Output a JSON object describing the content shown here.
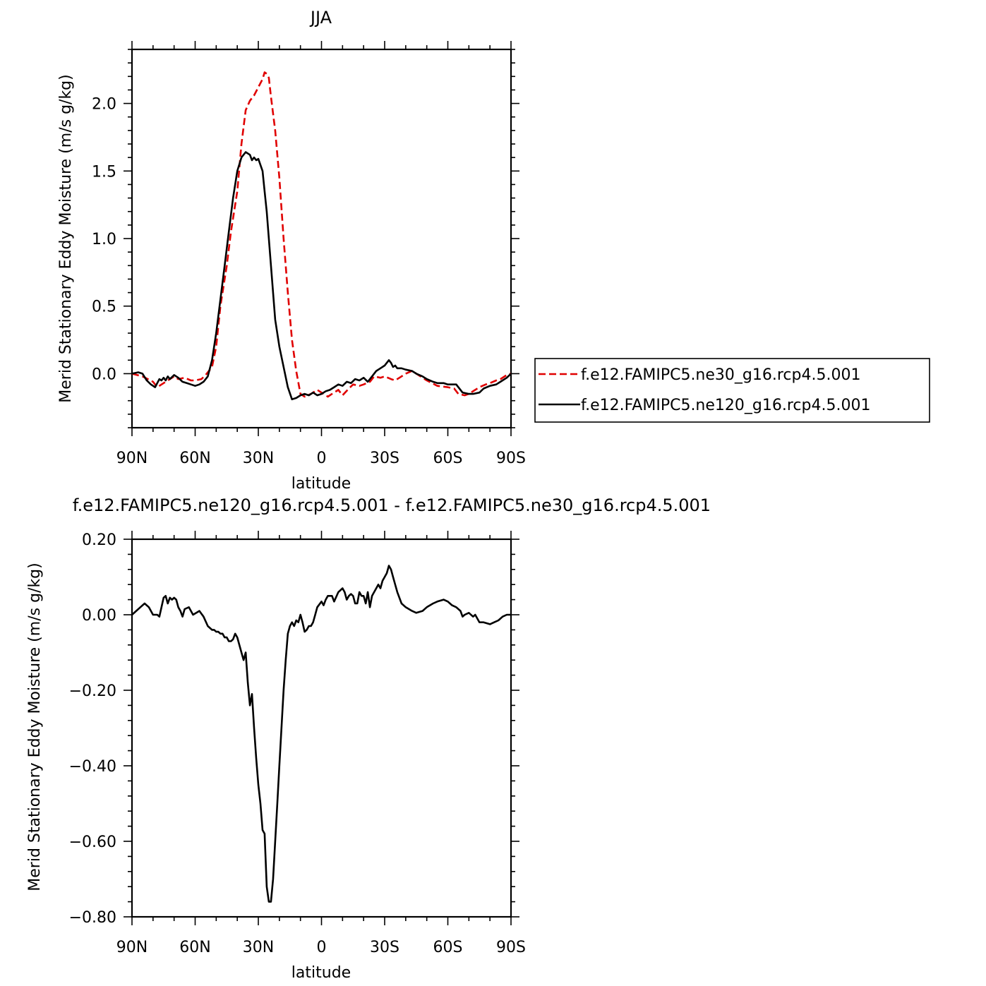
{
  "chart_data": [
    {
      "type": "line",
      "title": "JJA",
      "xlabel": "latitude",
      "ylabel": "Merid Stationary Eddy Moisture (m/s g/kg)",
      "xlim": [
        90,
        -90
      ],
      "ylim": [
        -0.4,
        2.4
      ],
      "x_ticks": [
        90,
        60,
        30,
        0,
        -30,
        -60,
        -90
      ],
      "x_tick_labels": [
        "90N",
        "60N",
        "30N",
        "0",
        "30S",
        "60S",
        "90S"
      ],
      "y_ticks": [
        0.0,
        0.5,
        1.0,
        1.5,
        2.0
      ],
      "y_tick_labels": [
        "0.0",
        "0.5",
        "1.0",
        "1.5",
        "2.0"
      ],
      "legend": "right",
      "series": [
        {
          "name": "f.e12.FAMIPC5.ne30_g16.rcp4.5.001",
          "color": "#e00000",
          "style": "dashed",
          "x": [
            90,
            85,
            80,
            78,
            75,
            72,
            70,
            68,
            65,
            62,
            60,
            57,
            55,
            52,
            50,
            48,
            45,
            43,
            40,
            38,
            36,
            34,
            32,
            30,
            28,
            27,
            26,
            25,
            24,
            22,
            20,
            18,
            16,
            14,
            12,
            10,
            8,
            5,
            2,
            0,
            -3,
            -5,
            -8,
            -10,
            -13,
            -15,
            -18,
            -20,
            -23,
            -25,
            -28,
            -30,
            -33,
            -35,
            -38,
            -40,
            -43,
            -45,
            -48,
            -50,
            -55,
            -60,
            -63,
            -65,
            -68,
            -70,
            -73,
            -75,
            -78,
            -80,
            -83,
            -85,
            -88,
            -90
          ],
          "y": [
            0.0,
            -0.02,
            -0.06,
            -0.1,
            -0.07,
            -0.04,
            -0.02,
            -0.04,
            -0.03,
            -0.05,
            -0.05,
            -0.04,
            -0.01,
            0.05,
            0.2,
            0.5,
            0.8,
            1.05,
            1.35,
            1.7,
            1.95,
            2.02,
            2.06,
            2.12,
            2.18,
            2.23,
            2.22,
            2.19,
            2.05,
            1.8,
            1.45,
            1.0,
            0.6,
            0.25,
            0.02,
            -0.15,
            -0.17,
            -0.15,
            -0.12,
            -0.14,
            -0.17,
            -0.15,
            -0.12,
            -0.16,
            -0.11,
            -0.08,
            -0.09,
            -0.08,
            -0.06,
            -0.02,
            -0.03,
            -0.02,
            -0.04,
            -0.05,
            -0.02,
            0.0,
            0.02,
            0.0,
            -0.03,
            -0.05,
            -0.09,
            -0.1,
            -0.11,
            -0.15,
            -0.16,
            -0.15,
            -0.12,
            -0.1,
            -0.08,
            -0.07,
            -0.05,
            -0.04,
            -0.01,
            0.0
          ]
        },
        {
          "name": "f.e12.FAMIPC5.ne120_g16.rcp4.5.001",
          "color": "#000000",
          "style": "solid",
          "x": [
            90,
            87,
            85,
            83,
            81,
            79,
            78,
            77,
            76,
            75,
            74,
            73,
            72,
            70,
            68,
            66,
            64,
            62,
            60,
            58,
            56,
            54,
            52,
            50,
            48,
            46,
            44,
            42,
            40,
            38,
            36,
            34,
            33,
            32,
            31,
            30,
            28,
            27,
            26,
            25,
            24,
            23,
            22,
            20,
            18,
            16,
            14,
            12,
            10,
            8,
            6,
            4,
            2,
            0,
            -2,
            -4,
            -6,
            -8,
            -10,
            -12,
            -14,
            -16,
            -18,
            -20,
            -22,
            -24,
            -26,
            -28,
            -30,
            -31,
            -32,
            -33,
            -34,
            -35,
            -36,
            -38,
            -40,
            -43,
            -45,
            -48,
            -50,
            -53,
            -55,
            -58,
            -60,
            -62,
            -64,
            -65,
            -67,
            -70,
            -72,
            -75,
            -77,
            -80,
            -83,
            -85,
            -88,
            -90
          ],
          "y": [
            0.0,
            0.01,
            0.0,
            -0.05,
            -0.08,
            -0.1,
            -0.07,
            -0.04,
            -0.05,
            -0.03,
            -0.05,
            -0.02,
            -0.04,
            -0.01,
            -0.03,
            -0.06,
            -0.07,
            -0.08,
            -0.09,
            -0.08,
            -0.06,
            -0.02,
            0.1,
            0.3,
            0.55,
            0.8,
            1.05,
            1.3,
            1.5,
            1.6,
            1.64,
            1.62,
            1.58,
            1.6,
            1.58,
            1.59,
            1.5,
            1.35,
            1.2,
            1.0,
            0.8,
            0.6,
            0.4,
            0.2,
            0.05,
            -0.1,
            -0.19,
            -0.18,
            -0.16,
            -0.15,
            -0.16,
            -0.14,
            -0.16,
            -0.15,
            -0.13,
            -0.12,
            -0.1,
            -0.08,
            -0.09,
            -0.06,
            -0.07,
            -0.04,
            -0.05,
            -0.03,
            -0.06,
            -0.02,
            0.02,
            0.04,
            0.06,
            0.08,
            0.1,
            0.08,
            0.05,
            0.06,
            0.04,
            0.04,
            0.03,
            0.02,
            0.0,
            -0.02,
            -0.04,
            -0.06,
            -0.07,
            -0.07,
            -0.08,
            -0.08,
            -0.08,
            -0.1,
            -0.14,
            -0.15,
            -0.15,
            -0.14,
            -0.11,
            -0.09,
            -0.08,
            -0.06,
            -0.03,
            0.0
          ]
        }
      ]
    },
    {
      "type": "line",
      "title": "f.e12.FAMIPC5.ne120_g16.rcp4.5.001 - f.e12.FAMIPC5.ne30_g16.rcp4.5.001",
      "xlabel": "latitude",
      "ylabel": "Merid Stationary Eddy Moisture (m/s g/kg)",
      "xlim": [
        90,
        -90
      ],
      "ylim": [
        -0.8,
        0.2
      ],
      "x_ticks": [
        90,
        60,
        30,
        0,
        -30,
        -60,
        -90
      ],
      "x_tick_labels": [
        "90N",
        "60N",
        "30N",
        "0",
        "30S",
        "60S",
        "90S"
      ],
      "y_ticks": [
        -0.8,
        -0.6,
        -0.4,
        -0.2,
        0.0,
        0.2
      ],
      "y_tick_labels": [
        "−0.80",
        "−0.60",
        "−0.40",
        "−0.20",
        "0.00",
        "0.20"
      ],
      "series": [
        {
          "color": "#000000",
          "style": "solid",
          "x": [
            90,
            88,
            86,
            84,
            82,
            80,
            78,
            77,
            76,
            75,
            74,
            73,
            72,
            71,
            70,
            69,
            68,
            67,
            66,
            65,
            63,
            61,
            58,
            56,
            54,
            52,
            51,
            50,
            49,
            48,
            47,
            46,
            45,
            44,
            43,
            42,
            41,
            40,
            38,
            37,
            36,
            35,
            34,
            33,
            32,
            31,
            30,
            29,
            28,
            27,
            26,
            25,
            24,
            23,
            22,
            21,
            20,
            19,
            18,
            17,
            16,
            15,
            14,
            13,
            12,
            11,
            10,
            9,
            8,
            7,
            6,
            5,
            4,
            3,
            2,
            0,
            -1,
            -2,
            -3,
            -5,
            -6,
            -8,
            -10,
            -11,
            -12,
            -13,
            -14,
            -15,
            -16,
            -17,
            -18,
            -19,
            -20,
            -21,
            -22,
            -23,
            -24,
            -25,
            -26,
            -27,
            -28,
            -29,
            -30,
            -31,
            -32,
            -33,
            -34,
            -35,
            -36,
            -38,
            -40,
            -43,
            -45,
            -48,
            -50,
            -53,
            -55,
            -58,
            -60,
            -62,
            -64,
            -66,
            -67,
            -68,
            -70,
            -72,
            -73,
            -75,
            -77,
            -80,
            -82,
            -84,
            -86,
            -88,
            -90
          ],
          "y": [
            0.0,
            0.01,
            0.02,
            0.03,
            0.02,
            0.0,
            0.0,
            -0.005,
            0.02,
            0.045,
            0.05,
            0.03,
            0.045,
            0.04,
            0.045,
            0.04,
            0.02,
            0.01,
            -0.005,
            0.015,
            0.02,
            0.0,
            0.01,
            -0.005,
            -0.03,
            -0.04,
            -0.04,
            -0.045,
            -0.045,
            -0.05,
            -0.05,
            -0.06,
            -0.06,
            -0.07,
            -0.07,
            -0.065,
            -0.05,
            -0.06,
            -0.1,
            -0.12,
            -0.1,
            -0.18,
            -0.24,
            -0.21,
            -0.3,
            -0.38,
            -0.45,
            -0.5,
            -0.57,
            -0.58,
            -0.72,
            -0.76,
            -0.76,
            -0.7,
            -0.6,
            -0.5,
            -0.4,
            -0.3,
            -0.2,
            -0.12,
            -0.05,
            -0.03,
            -0.02,
            -0.03,
            -0.015,
            -0.02,
            0.0,
            -0.02,
            -0.045,
            -0.04,
            -0.03,
            -0.03,
            -0.02,
            0.0,
            0.02,
            0.035,
            0.025,
            0.04,
            0.05,
            0.05,
            0.035,
            0.06,
            0.07,
            0.06,
            0.04,
            0.05,
            0.055,
            0.05,
            0.03,
            0.03,
            0.06,
            0.05,
            0.05,
            0.03,
            0.06,
            0.02,
            0.05,
            0.06,
            0.07,
            0.08,
            0.07,
            0.09,
            0.1,
            0.11,
            0.13,
            0.12,
            0.1,
            0.08,
            0.06,
            0.03,
            0.02,
            0.01,
            0.005,
            0.01,
            0.02,
            0.03,
            0.035,
            0.04,
            0.035,
            0.025,
            0.02,
            0.01,
            -0.005,
            0.0,
            0.005,
            -0.005,
            0.0,
            -0.02,
            -0.02,
            -0.025,
            -0.02,
            -0.015,
            -0.005,
            0.0,
            0.0
          ]
        }
      ]
    }
  ]
}
